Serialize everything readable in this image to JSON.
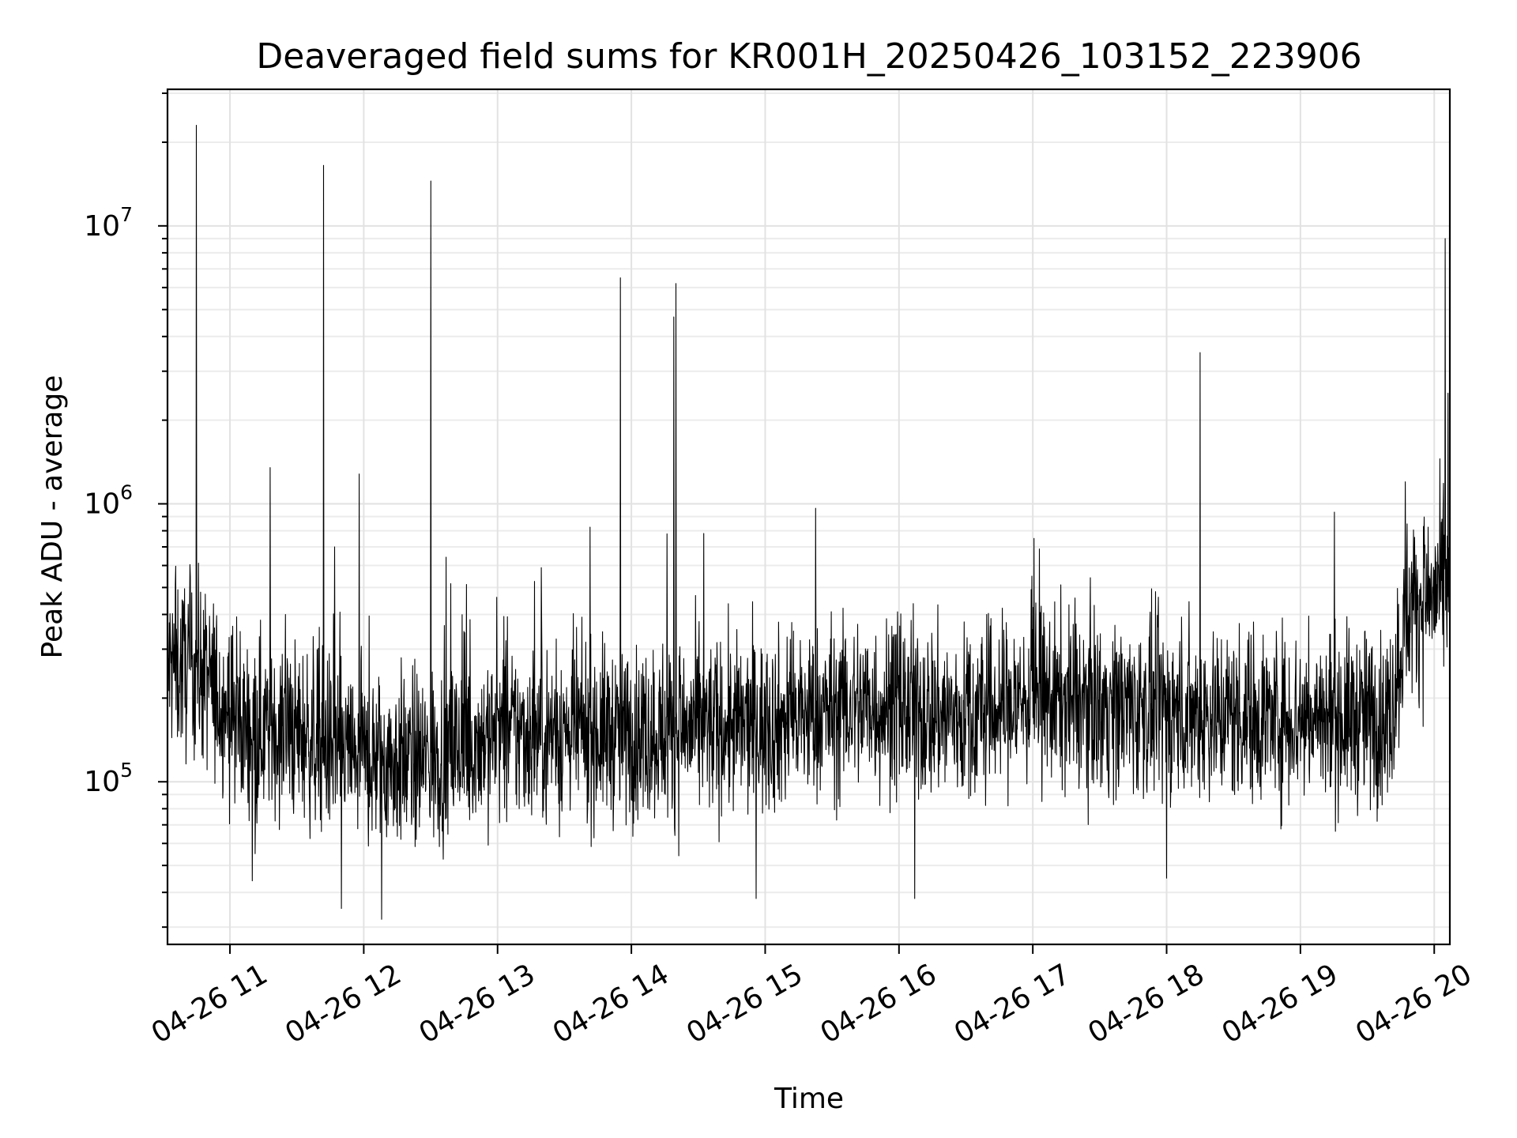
{
  "chart_data": {
    "type": "line",
    "title": "Deaveraged field sums for KR001H_20250426_103152_223906",
    "xlabel": "Time",
    "ylabel": "Peak ADU - average",
    "yscale": "log",
    "grid": true,
    "legend": "none",
    "series_color": "#000000",
    "grid_color": "#e2e2e2",
    "xlim": [
      "2025-04-26 10:32",
      "2025-04-26 20:07"
    ],
    "ylim": [
      26000,
      31000000
    ],
    "x_ticks": [
      "04-26 11",
      "04-26 12",
      "04-26 13",
      "04-26 14",
      "04-26 15",
      "04-26 16",
      "04-26 17",
      "04-26 18",
      "04-26 19",
      "04-26 20"
    ],
    "x_tick_times": [
      "2025-04-26 11:00",
      "2025-04-26 12:00",
      "2025-04-26 13:00",
      "2025-04-26 14:00",
      "2025-04-26 15:00",
      "2025-04-26 16:00",
      "2025-04-26 17:00",
      "2025-04-26 18:00",
      "2025-04-26 19:00",
      "2025-04-26 20:00"
    ],
    "y_ticks": [
      {
        "base": "10",
        "exp": "5",
        "value": 100000
      },
      {
        "base": "10",
        "exp": "6",
        "value": 1000000
      },
      {
        "base": "10",
        "exp": "7",
        "value": 10000000
      }
    ],
    "series": [
      {
        "baseline": [
          {
            "t": "2025-04-26 10:32",
            "v": 260000
          },
          {
            "t": "2025-04-26 10:45",
            "v": 260000
          },
          {
            "t": "2025-04-26 11:05",
            "v": 160000
          },
          {
            "t": "2025-04-26 11:30",
            "v": 150000
          },
          {
            "t": "2025-04-26 12:00",
            "v": 120000
          },
          {
            "t": "2025-04-26 12:30",
            "v": 120000
          },
          {
            "t": "2025-04-26 13:00",
            "v": 150000
          },
          {
            "t": "2025-04-26 14:00",
            "v": 150000
          },
          {
            "t": "2025-04-26 15:00",
            "v": 160000
          },
          {
            "t": "2025-04-26 15:45",
            "v": 190000
          },
          {
            "t": "2025-04-26 16:30",
            "v": 170000
          },
          {
            "t": "2025-04-26 17:00",
            "v": 200000
          },
          {
            "t": "2025-04-26 18:00",
            "v": 180000
          },
          {
            "t": "2025-04-26 19:00",
            "v": 170000
          },
          {
            "t": "2025-04-26 19:40",
            "v": 170000
          },
          {
            "t": "2025-04-26 19:48",
            "v": 420000
          },
          {
            "t": "2025-04-26 20:07",
            "v": 500000
          }
        ],
        "spikes": [
          {
            "t": "2025-04-26 10:45",
            "v": 23000000
          },
          {
            "t": "2025-04-26 11:18",
            "v": 1350000
          },
          {
            "t": "2025-04-26 11:42",
            "v": 16500000
          },
          {
            "t": "2025-04-26 11:58",
            "v": 1280000
          },
          {
            "t": "2025-04-26 12:30",
            "v": 14500000
          },
          {
            "t": "2025-04-26 13:55",
            "v": 6500000
          },
          {
            "t": "2025-04-26 14:20",
            "v": 6200000
          },
          {
            "t": "2025-04-26 14:19",
            "v": 4700000
          },
          {
            "t": "2025-04-26 18:15",
            "v": 3500000
          },
          {
            "t": "2025-04-26 20:05",
            "v": 9000000
          },
          {
            "t": "2025-04-26 19:47",
            "v": 1200000
          },
          {
            "t": "2025-04-26 14:16",
            "v": 780000
          },
          {
            "t": "2025-04-26 11:47",
            "v": 700000
          }
        ],
        "dips": [
          {
            "t": "2025-04-26 11:50",
            "v": 35000
          },
          {
            "t": "2025-04-26 12:08",
            "v": 32000
          },
          {
            "t": "2025-04-26 14:56",
            "v": 38000
          },
          {
            "t": "2025-04-26 16:07",
            "v": 38000
          },
          {
            "t": "2025-04-26 18:00",
            "v": 45000
          },
          {
            "t": "2025-04-26 11:10",
            "v": 44000
          }
        ]
      }
    ]
  }
}
